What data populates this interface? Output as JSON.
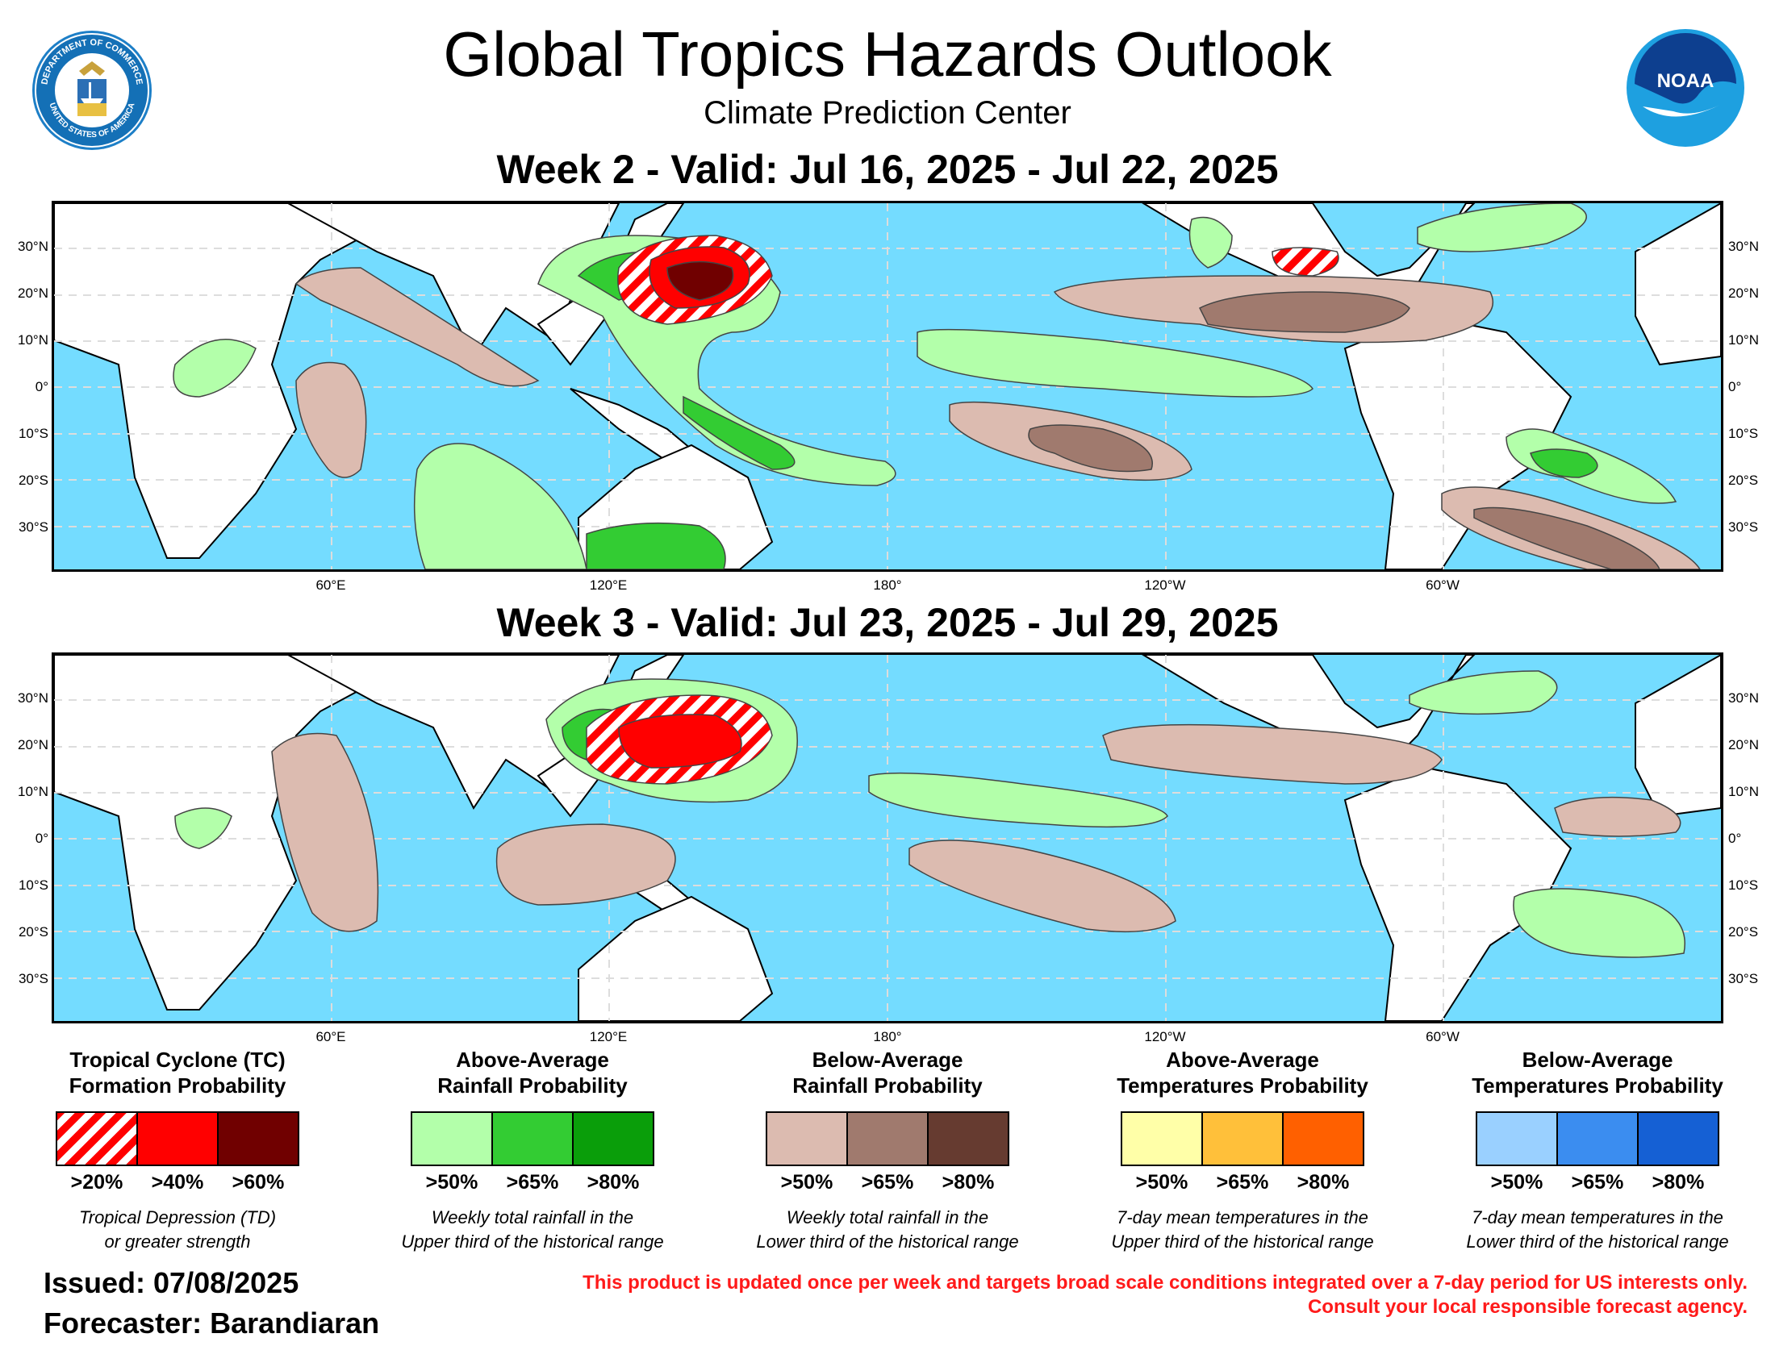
{
  "header": {
    "title": "Global Tropics Hazards Outlook",
    "subtitle": "Climate Prediction Center",
    "left_logo": "department-of-commerce-seal",
    "right_logo": "noaa-logo",
    "right_logo_text": "NOAA",
    "seal_text_top": "DEPARTMENT OF COMMERCE",
    "seal_text_bottom": "UNITED STATES OF AMERICA"
  },
  "map_labels": {
    "lat_labels": [
      "30°N",
      "20°N",
      "10°N",
      "0°",
      "10°S",
      "20°S",
      "30°S"
    ],
    "lon_labels": [
      "60°E",
      "120°E",
      "180°",
      "120°W",
      "60°W"
    ]
  },
  "week2": {
    "title": "Week 2 - Valid: Jul 16, 2025 - Jul 22, 2025"
  },
  "week3": {
    "title": "Week 3 - Valid: Jul 23, 2025 - Jul 29, 2025"
  },
  "legend": [
    {
      "title_line1": "Tropical Cyclone (TC)",
      "title_line2": "Formation Probability",
      "colors": [
        "hatch-red",
        "#ff0000",
        "#700000"
      ],
      "labels": [
        ">20%",
        ">40%",
        ">60%"
      ],
      "desc_line1": "Tropical Depression (TD)",
      "desc_line2": "or greater strength"
    },
    {
      "title_line1": "Above-Average",
      "title_line2": "Rainfall Probability",
      "colors": [
        "#b3ffaa",
        "#33cc33",
        "#0a9e0a"
      ],
      "labels": [
        ">50%",
        ">65%",
        ">80%"
      ],
      "desc_line1": "Weekly total rainfall in the",
      "desc_line2": "Upper third of the historical range"
    },
    {
      "title_line1": "Below-Average",
      "title_line2": "Rainfall Probability",
      "colors": [
        "#dcbbb0",
        "#a07a6e",
        "#663b30"
      ],
      "labels": [
        ">50%",
        ">65%",
        ">80%"
      ],
      "desc_line1": "Weekly total rainfall in the",
      "desc_line2": "Lower third of the historical range"
    },
    {
      "title_line1": "Above-Average",
      "title_line2": "Temperatures Probability",
      "colors": [
        "#ffffa8",
        "#ffc03a",
        "#ff6000"
      ],
      "labels": [
        ">50%",
        ">65%",
        ">80%"
      ],
      "desc_line1": "7-day mean temperatures in the",
      "desc_line2": "Upper third of the historical range"
    },
    {
      "title_line1": "Below-Average",
      "title_line2": "Temperatures Probability",
      "colors": [
        "#9ad0ff",
        "#3b8df0",
        "#1560d4"
      ],
      "labels": [
        ">50%",
        ">65%",
        ">80%"
      ],
      "desc_line1": "7-day mean temperatures in the",
      "desc_line2": "Lower third of the historical range"
    }
  ],
  "footer": {
    "issued": "Issued: 07/08/2025",
    "forecaster": "Forecaster: Barandiaran",
    "disclaimer_line1": "This product is updated once per week and targets broad scale conditions integrated over a 7-day period for US interests only.",
    "disclaimer_line2": "Consult your local responsible forecast agency."
  },
  "colors": {
    "ocean": "#74dcff",
    "land": "#ffffff",
    "grid": "#dddddd"
  }
}
